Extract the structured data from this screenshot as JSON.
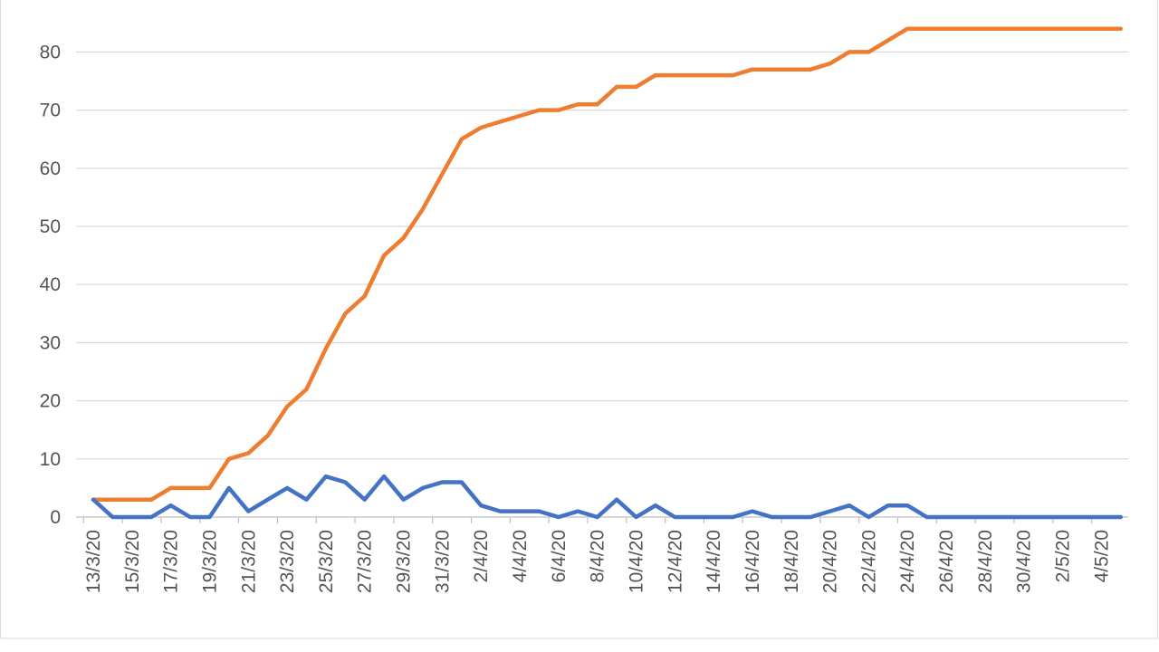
{
  "chart_data": {
    "type": "line",
    "title": "",
    "xlabel": "",
    "ylabel": "",
    "ylim": [
      0,
      90
    ],
    "yticks": [
      0,
      10,
      20,
      30,
      40,
      50,
      60,
      70,
      80,
      90
    ],
    "grid": true,
    "legend": "none",
    "x": [
      "13/3/20",
      "14/3/20",
      "15/3/20",
      "16/3/20",
      "17/3/20",
      "18/3/20",
      "19/3/20",
      "20/3/20",
      "21/3/20",
      "22/3/20",
      "23/3/20",
      "24/3/20",
      "25/3/20",
      "26/3/20",
      "27/3/20",
      "28/3/20",
      "29/3/20",
      "30/3/20",
      "31/3/20",
      "1/4/20",
      "2/4/20",
      "3/4/20",
      "4/4/20",
      "5/4/20",
      "6/4/20",
      "7/4/20",
      "8/4/20",
      "9/4/20",
      "10/4/20",
      "11/4/20",
      "12/4/20",
      "13/4/20",
      "14/4/20",
      "15/4/20",
      "16/4/20",
      "17/4/20",
      "18/4/20",
      "19/4/20",
      "20/4/20",
      "21/4/20",
      "22/4/20",
      "23/4/20",
      "24/4/20",
      "25/4/20",
      "26/4/20",
      "27/4/20",
      "28/4/20",
      "29/4/20",
      "30/4/20",
      "1/5/20",
      "2/5/20",
      "3/5/20",
      "4/5/20",
      "5/5/20"
    ],
    "x_tick_labels": [
      "13/3/20",
      "15/3/20",
      "17/3/20",
      "19/3/20",
      "21/3/20",
      "23/3/20",
      "25/3/20",
      "27/3/20",
      "29/3/20",
      "31/3/20",
      "2/4/20",
      "4/4/20",
      "6/4/20",
      "8/4/20",
      "10/4/20",
      "12/4/20",
      "14/4/20",
      "16/4/20",
      "18/4/20",
      "20/4/20",
      "22/4/20",
      "24/4/20",
      "26/4/20",
      "28/4/20",
      "30/4/20",
      "2/5/20",
      "4/5/20"
    ],
    "series": [
      {
        "color": "#ED7D31",
        "values": [
          3,
          3,
          3,
          3,
          5,
          5,
          5,
          10,
          11,
          14,
          19,
          22,
          29,
          35,
          38,
          45,
          48,
          53,
          59,
          65,
          67,
          68,
          69,
          70,
          70,
          71,
          71,
          74,
          74,
          76,
          76,
          76,
          76,
          76,
          77,
          77,
          77,
          77,
          78,
          80,
          80,
          82,
          84,
          84,
          84,
          84,
          84,
          84,
          84,
          84,
          84,
          84,
          84,
          84
        ]
      },
      {
        "color": "#4472C4",
        "values": [
          3,
          0,
          0,
          0,
          2,
          0,
          0,
          5,
          1,
          3,
          5,
          3,
          7,
          6,
          3,
          7,
          3,
          5,
          6,
          6,
          2,
          1,
          1,
          1,
          0,
          1,
          0,
          3,
          0,
          2,
          0,
          0,
          0,
          0,
          1,
          0,
          0,
          0,
          1,
          2,
          0,
          2,
          2,
          0,
          0,
          0,
          0,
          0,
          0,
          0,
          0,
          0,
          0,
          0
        ]
      }
    ]
  }
}
